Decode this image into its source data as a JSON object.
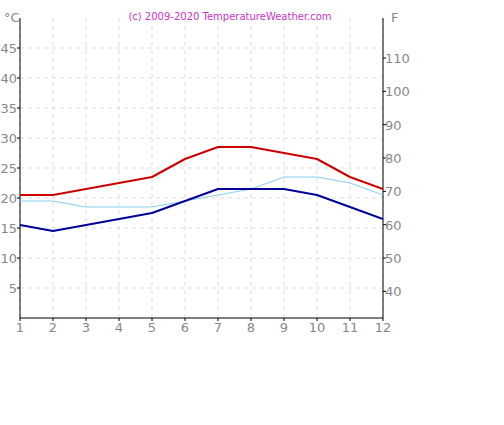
{
  "chart_data": {
    "type": "line",
    "title": "(c) 2009-2020 TemperatureWeather.com",
    "y_label": "°C",
    "y2_label": "F",
    "x": [
      1,
      2,
      3,
      4,
      5,
      6,
      7,
      8,
      9,
      10,
      11,
      12
    ],
    "xlim": [
      1,
      12
    ],
    "xticks": [
      1,
      2,
      3,
      4,
      5,
      6,
      7,
      8,
      9,
      10,
      11,
      12
    ],
    "ylim": [
      0,
      50
    ],
    "yticks": [
      5,
      10,
      15,
      20,
      25,
      30,
      35,
      40,
      45
    ],
    "y2lim": [
      32,
      122
    ],
    "y2ticks": [
      40,
      50,
      60,
      70,
      80,
      90,
      100,
      110
    ],
    "grid": true,
    "series": [
      {
        "color": "#cc0000",
        "values": [
          20.5,
          20.5,
          21.5,
          22.5,
          23.5,
          26.5,
          28.5,
          28.5,
          27.5,
          26.5,
          23.5,
          21.5
        ]
      },
      {
        "color": "#000099",
        "values": [
          15.5,
          14.5,
          15.5,
          16.5,
          17.5,
          19.5,
          21.5,
          21.5,
          21.5,
          20.5,
          18.5,
          16.5
        ]
      },
      {
        "color": "#87ceeb",
        "values": [
          19.5,
          19.5,
          18.5,
          18.5,
          18.5,
          19.5,
          20.5,
          21.5,
          23.5,
          23.5,
          22.5,
          20.5
        ]
      }
    ]
  }
}
